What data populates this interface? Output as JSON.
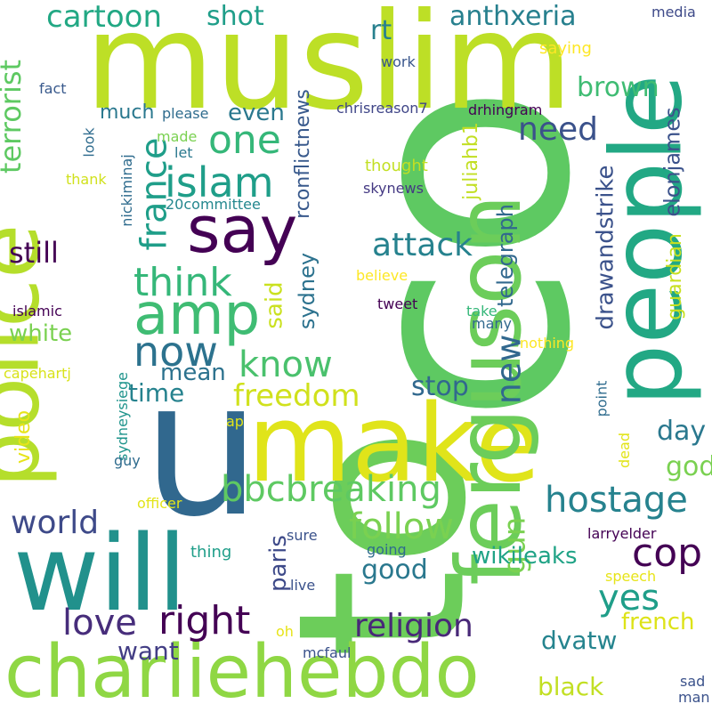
{
  "palette": {
    "lime": "#b5de2b",
    "yellow": "#d9e32b",
    "green": "#6ccd5a",
    "mint": "#35b779",
    "teal": "#1f9e89",
    "cyan": "#26828e",
    "steel": "#31688e",
    "indigo": "#3e4a89",
    "violet": "#482878",
    "deep": "#440154",
    "pale": "#e6e72a"
  },
  "words": {
    "co": {
      "text": "co",
      "color": "#5ec962"
    },
    "to": {
      "text": "to",
      "color": "#6ccd5a"
    },
    "muslim": {
      "text": "muslim",
      "color": "#bddf26"
    },
    "people": {
      "text": "people",
      "color": "#22a884"
    },
    "ferguson": {
      "text": "ferguson",
      "color": "#6ccd5a"
    },
    "police": {
      "text": "police",
      "color": "#b5de2b"
    },
    "u": {
      "text": "u",
      "color": "#31688e"
    },
    "make": {
      "text": "make",
      "color": "#e0e41a"
    },
    "will": {
      "text": "will",
      "color": "#21918c"
    },
    "charliehebdo": {
      "text": "charliehebdo",
      "color": "#8fd744"
    },
    "say": {
      "text": "say",
      "color": "#440154"
    },
    "amp": {
      "text": "amp",
      "color": "#3fbc73"
    },
    "bbcbreaking": {
      "text": "bbcbreaking",
      "color": "#5ec962"
    },
    "know": {
      "text": "know",
      "color": "#4ac16d"
    },
    "freedom": {
      "text": "freedom",
      "color": "#d0e11c"
    },
    "islam": {
      "text": "islam",
      "color": "#1f9e89"
    },
    "think": {
      "text": "think",
      "color": "#35b779"
    },
    "cartoon": {
      "text": "cartoon",
      "color": "#22a884"
    },
    "now": {
      "text": "now",
      "color": "#2c728e"
    },
    "one": {
      "text": "one",
      "color": "#35b779"
    },
    "france": {
      "text": "france",
      "color": "#1f9e89"
    },
    "attack": {
      "text": "attack",
      "color": "#26828e"
    },
    "need": {
      "text": "need",
      "color": "#3b528b"
    },
    "right": {
      "text": "right",
      "color": "#440154"
    },
    "love": {
      "text": "love",
      "color": "#472d7b"
    },
    "follow": {
      "text": "follow",
      "color": "#7ad151"
    },
    "hostage": {
      "text": "hostage",
      "color": "#26828e"
    },
    "cop": {
      "text": "cop",
      "color": "#440154"
    },
    "religion": {
      "text": "religion",
      "color": "#482878"
    },
    "world": {
      "text": "world",
      "color": "#3e4a89"
    },
    "terrorist": {
      "text": "terrorist",
      "color": "#5ec962"
    },
    "shot": {
      "text": "shot",
      "color": "#1f9e89"
    },
    "anthxeria": {
      "text": "anthxeria",
      "color": "#27808e"
    },
    "rt": {
      "text": "rt",
      "color": "#27808e"
    },
    "brown": {
      "text": "brown",
      "color": "#3fbc73"
    },
    "much": {
      "text": "much",
      "color": "#2a788e"
    },
    "even": {
      "text": "even",
      "color": "#2a788e"
    },
    "still": {
      "text": "still",
      "color": "#440154"
    },
    "white": {
      "text": "white",
      "color": "#7ad151"
    },
    "time": {
      "text": "time",
      "color": "#26828e"
    },
    "mean": {
      "text": "mean",
      "color": "#2c728e"
    },
    "stop": {
      "text": "stop",
      "color": "#31688e"
    },
    "new": {
      "text": "new",
      "color": "#31688e"
    },
    "day": {
      "text": "day",
      "color": "#2a788e"
    },
    "god": {
      "text": "god",
      "color": "#7ad151"
    },
    "gun": {
      "text": "gun",
      "color": "#7ad151"
    },
    "yes": {
      "text": "yes",
      "color": "#1f9e89"
    },
    "good": {
      "text": "good",
      "color": "#2a788e"
    },
    "wikileaks": {
      "text": "wikileaks",
      "color": "#20a386"
    },
    "french": {
      "text": "french",
      "color": "#dde318"
    },
    "dvatw": {
      "text": "dvatw",
      "color": "#25848e"
    },
    "black": {
      "text": "black",
      "color": "#c2df23"
    },
    "want": {
      "text": "want",
      "color": "#433e85"
    },
    "paris": {
      "text": "paris",
      "color": "#3e4a89"
    },
    "said": {
      "text": "said",
      "color": "#cae11f"
    },
    "video": {
      "text": "video",
      "color": "#e7e419"
    },
    "sydney": {
      "text": "sydney",
      "color": "#2c728e"
    },
    "telegraph": {
      "text": "telegraph",
      "color": "#31688e"
    },
    "drawandstrike": {
      "text": "drawandstrike",
      "color": "#3b528b"
    },
    "juliahb1": {
      "text": "juliahb1",
      "color": "#c2df23"
    },
    "elonjames": {
      "text": "elonjames",
      "color": "#3b528b"
    },
    "guardian": {
      "text": "guardian",
      "color": "#c8e020"
    },
    "rconflictnews": {
      "text": "rconflictnews",
      "color": "#38598c"
    },
    "chrisreason7": {
      "text": "chrisreason7",
      "color": "#404688"
    },
    "drhingram": {
      "text": "drhingram",
      "color": "#440154"
    },
    "media": {
      "text": "media",
      "color": "#3e4a89"
    },
    "saying": {
      "text": "saying",
      "color": "#fde725"
    },
    "work": {
      "text": "work",
      "color": "#39568c"
    },
    "fact": {
      "text": "fact",
      "color": "#38598c"
    },
    "please": {
      "text": "please",
      "color": "#2f6c8e"
    },
    "made": {
      "text": "made",
      "color": "#7ad151"
    },
    "let": {
      "text": "let",
      "color": "#2a788e"
    },
    "look": {
      "text": "look",
      "color": "#2f6c8e"
    },
    "thank": {
      "text": "thank",
      "color": "#d0e11c"
    },
    "thought": {
      "text": "thought",
      "color": "#c2df23"
    },
    "skynews": {
      "text": "skynews",
      "color": "#443983"
    },
    "nickiminaj": {
      "text": "nickiminaj",
      "color": "#2f6c8e"
    },
    "20committee": {
      "text": "20committee",
      "color": "#24878e"
    },
    "believe": {
      "text": "believe",
      "color": "#fde725"
    },
    "islamic": {
      "text": "islamic",
      "color": "#440154"
    },
    "tweet": {
      "text": "tweet",
      "color": "#440154"
    },
    "take": {
      "text": "take",
      "color": "#35b779"
    },
    "many": {
      "text": "many",
      "color": "#31688e"
    },
    "nothing": {
      "text": "nothing",
      "color": "#fde725"
    },
    "capehartj": {
      "text": "capehartj",
      "color": "#d8e219"
    },
    "sydneysiege": {
      "text": "sydneysiege",
      "color": "#1f948c"
    },
    "ap": {
      "text": "ap",
      "color": "#e2e418"
    },
    "guy": {
      "text": "guy",
      "color": "#2f6c8e"
    },
    "point": {
      "text": "point",
      "color": "#2f6c8e"
    },
    "dead": {
      "text": "dead",
      "color": "#e2e418"
    },
    "officer": {
      "text": "officer",
      "color": "#e2e418"
    },
    "sure": {
      "text": "sure",
      "color": "#3b528b"
    },
    "larryelder": {
      "text": "larryelder",
      "color": "#440154"
    },
    "going": {
      "text": "going",
      "color": "#2f6c8e"
    },
    "thing": {
      "text": "thing",
      "color": "#1f9e89"
    },
    "live": {
      "text": "live",
      "color": "#3b528b"
    },
    "speech": {
      "text": "speech",
      "color": "#e7e419"
    },
    "oh": {
      "text": "oh",
      "color": "#e7e419"
    },
    "mcfaul": {
      "text": "mcfaul",
      "color": "#3b528b"
    },
    "sad": {
      "text": "sad",
      "color": "#3b528b"
    },
    "man": {
      "text": "man",
      "color": "#3b528b"
    }
  }
}
